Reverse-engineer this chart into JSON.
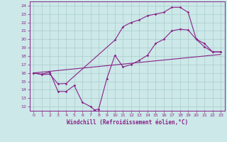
{
  "line1_x": [
    0,
    1,
    2,
    3,
    4,
    10,
    11,
    12,
    13,
    14,
    15,
    16,
    17,
    18,
    19,
    20,
    21,
    22,
    23
  ],
  "line1_y": [
    16.0,
    15.8,
    15.85,
    14.7,
    14.75,
    19.9,
    21.5,
    22.0,
    22.3,
    22.8,
    23.0,
    23.2,
    23.8,
    23.8,
    23.2,
    20.0,
    19.1,
    18.5,
    18.5
  ],
  "line2_x": [
    0,
    1,
    2,
    3,
    4,
    5,
    6,
    7,
    7.5,
    8,
    9,
    10,
    11,
    12,
    13,
    14,
    15,
    16,
    17,
    18,
    19,
    20,
    21,
    22,
    23
  ],
  "line2_y": [
    16.0,
    15.85,
    16.1,
    13.8,
    13.8,
    14.5,
    12.5,
    12.0,
    11.6,
    11.7,
    15.3,
    18.1,
    16.7,
    17.0,
    17.5,
    18.1,
    19.5,
    20.0,
    21.0,
    21.2,
    21.1,
    20.0,
    19.5,
    18.5,
    18.5
  ],
  "line3_x": [
    0,
    23
  ],
  "line3_y": [
    16.0,
    18.2
  ],
  "color": "#882288",
  "bg_color": "#cce8e8",
  "grid_color": "#aacccc",
  "xlabel": "Windchill (Refroidissement éolien,°C)",
  "xlim": [
    -0.5,
    23.5
  ],
  "ylim": [
    11.5,
    24.5
  ],
  "xticks": [
    0,
    1,
    2,
    3,
    4,
    5,
    6,
    7,
    8,
    9,
    10,
    11,
    12,
    13,
    14,
    15,
    16,
    17,
    18,
    19,
    20,
    21,
    22,
    23
  ],
  "yticks": [
    12,
    13,
    14,
    15,
    16,
    17,
    18,
    19,
    20,
    21,
    22,
    23,
    24
  ],
  "tick_fontsize": 4.5,
  "xlabel_fontsize": 5.5
}
